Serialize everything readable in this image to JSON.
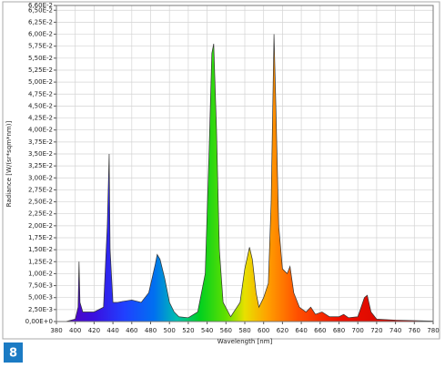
{
  "chart_data": {
    "type": "area",
    "ylabel": "Radiance [W/(sr*sqm*nm)]",
    "xlabel": "Wavelength [nm]",
    "badge": "8",
    "grid": true,
    "color": "#333333",
    "xlim": [
      380,
      780
    ],
    "xticks": [
      380,
      400,
      420,
      440,
      460,
      480,
      500,
      520,
      540,
      560,
      580,
      600,
      620,
      640,
      660,
      680,
      700,
      720,
      740,
      760,
      780
    ],
    "ylim": [
      0,
      0.066
    ],
    "yticks": [
      {
        "value": 0,
        "label": "0,00E+0"
      },
      {
        "value": 0.0025,
        "label": "2,50E-3"
      },
      {
        "value": 0.005,
        "label": "5,00E-3"
      },
      {
        "value": 0.0075,
        "label": "7,50E-3"
      },
      {
        "value": 0.01,
        "label": "1,00E-2"
      },
      {
        "value": 0.0125,
        "label": "1,25E-2"
      },
      {
        "value": 0.015,
        "label": "1,50E-2"
      },
      {
        "value": 0.0175,
        "label": "1,75E-2"
      },
      {
        "value": 0.02,
        "label": "2,00E-2"
      },
      {
        "value": 0.0225,
        "label": "2,25E-2"
      },
      {
        "value": 0.025,
        "label": "2,50E-2"
      },
      {
        "value": 0.0275,
        "label": "2,75E-2"
      },
      {
        "value": 0.03,
        "label": "3,00E-2"
      },
      {
        "value": 0.0325,
        "label": "3,25E-2"
      },
      {
        "value": 0.035,
        "label": "3,50E-2"
      },
      {
        "value": 0.0375,
        "label": "3,75E-2"
      },
      {
        "value": 0.04,
        "label": "4,00E-2"
      },
      {
        "value": 0.0425,
        "label": "4,25E-2"
      },
      {
        "value": 0.045,
        "label": "4,50E-2"
      },
      {
        "value": 0.0475,
        "label": "4,75E-2"
      },
      {
        "value": 0.05,
        "label": "5,00E-2"
      },
      {
        "value": 0.0525,
        "label": "5,25E-2"
      },
      {
        "value": 0.055,
        "label": "5,50E-2"
      },
      {
        "value": 0.0575,
        "label": "5,75E-2"
      },
      {
        "value": 0.06,
        "label": "6,00E-2"
      },
      {
        "value": 0.0625,
        "label": "6,25E-2"
      },
      {
        "value": 0.065,
        "label": "6,50E-2"
      },
      {
        "value": 0.066,
        "label": "6,60E-2"
      }
    ],
    "x": [
      380,
      390,
      400,
      403,
      404,
      405,
      408,
      420,
      430,
      434,
      436,
      437,
      440,
      445,
      450,
      460,
      470,
      478,
      485,
      487,
      490,
      495,
      500,
      505,
      510,
      520,
      530,
      538,
      542,
      545,
      547,
      550,
      553,
      557,
      565,
      575,
      580,
      585,
      588,
      592,
      595,
      600,
      605,
      608,
      611,
      613,
      616,
      620,
      625,
      628,
      632,
      638,
      645,
      650,
      655,
      662,
      670,
      680,
      685,
      690,
      700,
      707,
      710,
      714,
      720,
      740,
      760,
      780
    ],
    "values": [
      0,
      0,
      0.0005,
      0.003,
      0.0125,
      0.004,
      0.002,
      0.002,
      0.003,
      0.02,
      0.035,
      0.015,
      0.004,
      0.004,
      0.0042,
      0.0045,
      0.004,
      0.006,
      0.012,
      0.014,
      0.013,
      0.009,
      0.004,
      0.002,
      0.001,
      0.0008,
      0.002,
      0.01,
      0.035,
      0.056,
      0.058,
      0.04,
      0.015,
      0.004,
      0.001,
      0.004,
      0.011,
      0.0155,
      0.013,
      0.006,
      0.003,
      0.005,
      0.008,
      0.025,
      0.06,
      0.045,
      0.02,
      0.011,
      0.01,
      0.0115,
      0.006,
      0.003,
      0.002,
      0.003,
      0.0015,
      0.002,
      0.001,
      0.001,
      0.0015,
      0.0008,
      0.001,
      0.005,
      0.0055,
      0.002,
      0.0005,
      0.0003,
      0.0002,
      0.0001
    ]
  }
}
